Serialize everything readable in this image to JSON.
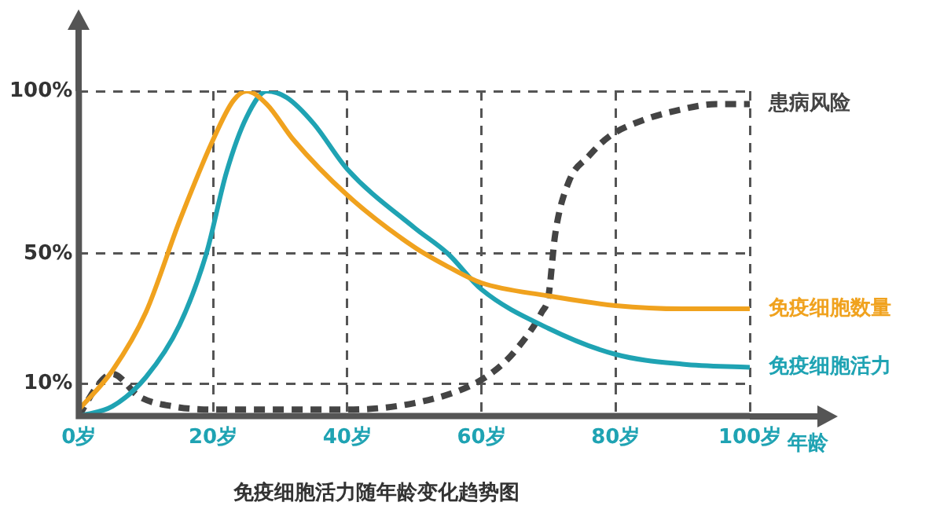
{
  "chart_data": {
    "type": "line",
    "title": "免疫细胞活力随年龄变化趋势图",
    "xlabel": "年龄",
    "xlim": [
      0,
      100
    ],
    "xticks": [
      {
        "value": 0,
        "label": "0岁"
      },
      {
        "value": 20,
        "label": "20岁"
      },
      {
        "value": 40,
        "label": "40岁"
      },
      {
        "value": 60,
        "label": "60岁"
      },
      {
        "value": 80,
        "label": "80岁"
      },
      {
        "value": 100,
        "label": "100岁"
      }
    ],
    "ylim": [
      0,
      100
    ],
    "yticks": [
      {
        "value": 10,
        "label": "10%"
      },
      {
        "value": 50,
        "label": "50%"
      },
      {
        "value": 100,
        "label": "100%"
      }
    ],
    "grid": true,
    "marker": "none",
    "series": [
      {
        "name": "免疫细胞数量",
        "color": "#f0a21e",
        "line_style": "solid",
        "x": [
          0,
          5,
          10,
          15,
          20,
          23,
          25,
          28,
          32,
          40,
          50,
          55,
          60,
          70,
          80,
          90,
          100
        ],
        "values": [
          2,
          14,
          32,
          60,
          85,
          97,
          100,
          96,
          85,
          68,
          52,
          46,
          41,
          37,
          34,
          33,
          33
        ]
      },
      {
        "name": "免疫细胞活力",
        "color": "#1fa3b3",
        "line_style": "solid",
        "x": [
          0,
          5,
          10,
          15,
          19,
          22,
          25,
          28,
          31,
          35,
          40,
          50,
          55,
          60,
          70,
          80,
          90,
          100
        ],
        "values": [
          0,
          3,
          12,
          28,
          50,
          75,
          92,
          100,
          98,
          90,
          76,
          58,
          50,
          39,
          27,
          19,
          16,
          15
        ]
      },
      {
        "name": "患病风险",
        "color": "#444444",
        "line_style": "dashed",
        "x": [
          0,
          3,
          5,
          9,
          14,
          20,
          30,
          40,
          50,
          58,
          62,
          65,
          69,
          70,
          71,
          73,
          76,
          79,
          84,
          89,
          95,
          100
        ],
        "values": [
          0,
          10,
          13,
          6,
          3,
          2,
          2,
          2,
          4,
          9,
          14,
          20,
          32,
          37,
          56,
          72,
          80,
          86,
          91,
          94,
          96,
          96
        ]
      }
    ]
  }
}
